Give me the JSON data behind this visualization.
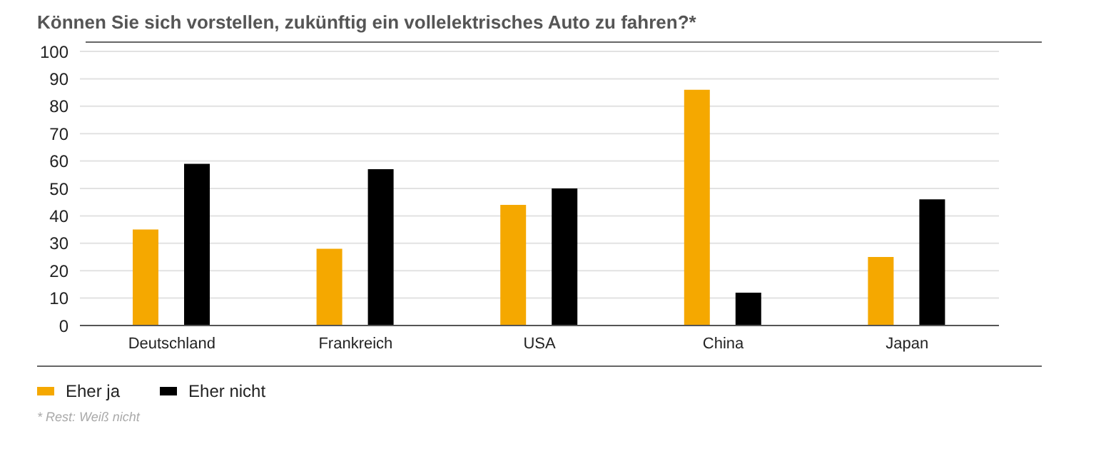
{
  "chart_data": {
    "type": "bar",
    "title": "Können Sie sich vorstellen, zukünftig ein vollelektrisches Auto zu fahren?*",
    "categories": [
      "Deutschland",
      "Frankreich",
      "USA",
      "China",
      "Japan"
    ],
    "series": [
      {
        "name": "Eher ja",
        "color": "#f5a800",
        "values": [
          35,
          28,
          44,
          86,
          25
        ]
      },
      {
        "name": "Eher nicht",
        "color": "#000000",
        "values": [
          59,
          57,
          50,
          12,
          46
        ]
      }
    ],
    "ylim": [
      0,
      100
    ],
    "yticks": [
      0,
      10,
      20,
      30,
      40,
      50,
      60,
      70,
      80,
      90,
      100
    ],
    "grid": "y",
    "legend": "bottom left",
    "annotations": [
      "* Rest: Weiß nicht"
    ]
  }
}
